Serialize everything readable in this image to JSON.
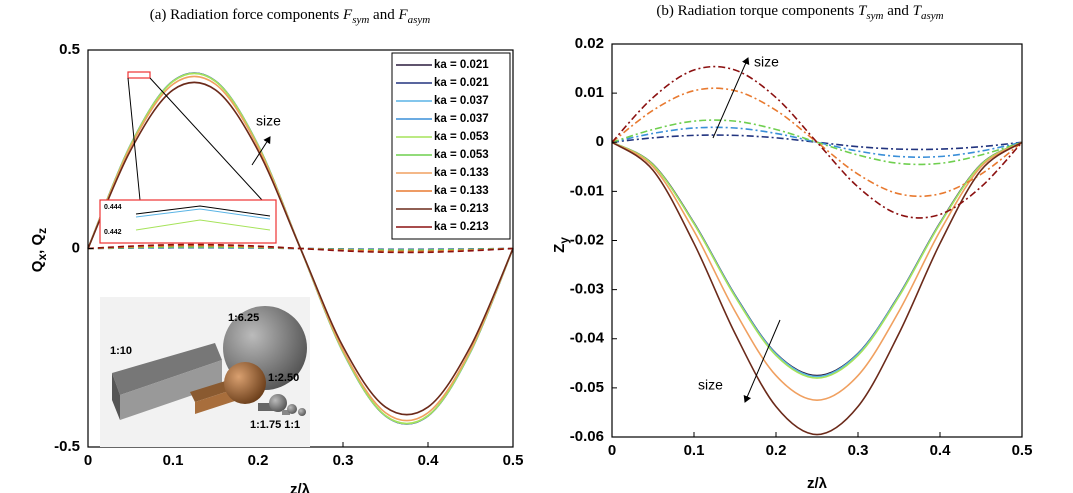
{
  "chart_data": [
    {
      "type": "line",
      "title_parts": [
        "(a) Radiation force components ",
        "F",
        "sym",
        " and ",
        "F",
        "asym"
      ],
      "xlabel": "z/λ",
      "ylabel_parts": [
        "Q",
        "x",
        ", Q",
        "z"
      ],
      "x": [
        0,
        0.05,
        0.1,
        0.15,
        0.2,
        0.25,
        0.3,
        0.35,
        0.4,
        0.45,
        0.5
      ],
      "xlim": [
        0,
        0.5
      ],
      "xticks": [
        0,
        0.1,
        0.2,
        0.3,
        0.4,
        0.5
      ],
      "ylim": [
        -0.5,
        0.5
      ],
      "yticks": [
        -0.5,
        0,
        0.5
      ],
      "legend": "upper right",
      "series": [
        {
          "name": "ka = 0.021",
          "color": "#2a1b3d",
          "line_style": "solid",
          "values": [
            0,
            0.2608,
            0.4218,
            0.4218,
            0.2608,
            0,
            -0.2608,
            -0.4218,
            -0.4218,
            -0.2608,
            0
          ]
        },
        {
          "name": "ka = 0.021",
          "color": "#22347f",
          "line_style": "dashed",
          "values": [
            0,
            0.0012,
            0.0019,
            0.0019,
            0.0012,
            0,
            -0.0012,
            -0.0019,
            -0.0019,
            -0.0012,
            0
          ]
        },
        {
          "name": "ka = 0.037",
          "color": "#5ab4e5",
          "line_style": "solid",
          "values": [
            0,
            0.2606,
            0.4215,
            0.4215,
            0.2606,
            0,
            -0.2606,
            -0.4215,
            -0.4215,
            -0.2606,
            0
          ]
        },
        {
          "name": "ka = 0.037",
          "color": "#3a8fd8",
          "line_style": "dashed",
          "values": [
            0,
            0.0018,
            0.0029,
            0.0029,
            0.0018,
            0,
            -0.0018,
            -0.0029,
            -0.0029,
            -0.0018,
            0
          ]
        },
        {
          "name": "ka = 0.053",
          "color": "#a6e35a",
          "line_style": "solid",
          "values": [
            0,
            0.2602,
            0.4208,
            0.4208,
            0.2602,
            0,
            -0.2602,
            -0.4208,
            -0.4208,
            -0.2602,
            0
          ]
        },
        {
          "name": "ka = 0.053",
          "color": "#6fcf4f",
          "line_style": "dashed",
          "values": [
            0,
            0.0024,
            0.0038,
            0.0038,
            0.0024,
            0,
            -0.0024,
            -0.0038,
            -0.0038,
            -0.0024,
            0
          ]
        },
        {
          "name": "ka = 0.133",
          "color": "#f0a060",
          "line_style": "solid",
          "values": [
            0,
            0.2558,
            0.4137,
            0.4137,
            0.2558,
            0,
            -0.2558,
            -0.4137,
            -0.4137,
            -0.2558,
            0
          ]
        },
        {
          "name": "ka = 0.133",
          "color": "#e87a30",
          "line_style": "dashed",
          "values": [
            0,
            0.0041,
            0.0067,
            0.0067,
            0.0041,
            0,
            -0.0041,
            -0.0067,
            -0.0067,
            -0.0041,
            0
          ]
        },
        {
          "name": "ka = 0.213",
          "color": "#6b2a1a",
          "line_style": "solid",
          "values": [
            0,
            0.247,
            0.3994,
            0.3994,
            0.247,
            0,
            -0.247,
            -0.3994,
            -0.3994,
            -0.247,
            0
          ]
        },
        {
          "name": "ka = 0.213",
          "color": "#8b1010",
          "line_style": "dashed",
          "values": [
            0,
            0.0059,
            0.0095,
            0.0095,
            0.0059,
            0,
            -0.0059,
            -0.0095,
            -0.0095,
            -0.0059,
            0
          ]
        }
      ],
      "annotation": "size",
      "inset_labels": [
        "0.444",
        "0.442"
      ],
      "inset_image_labels": [
        "1:10",
        "1:6.25",
        "1:2.50",
        "1:1.75 1:1"
      ]
    },
    {
      "type": "line",
      "title_parts": [
        "(b) Radiation torque components ",
        "T",
        "sym",
        " and ",
        "T",
        "asym"
      ],
      "xlabel": "z/λ",
      "ylabel_parts": [
        "Z",
        "y"
      ],
      "x": [
        0,
        0.05,
        0.1,
        0.15,
        0.2,
        0.25,
        0.3,
        0.35,
        0.4,
        0.45,
        0.5
      ],
      "xlim": [
        0,
        0.5
      ],
      "xticks": [
        0,
        0.1,
        0.2,
        0.3,
        0.4,
        0.5
      ],
      "ylim": [
        -0.06,
        0.02
      ],
      "yticks": [
        -0.06,
        -0.05,
        -0.04,
        -0.03,
        -0.02,
        -0.01,
        0,
        0.01,
        0.02
      ],
      "series": [
        {
          "color": "#2a1b3d",
          "line_style": "solid",
          "values": [
            0,
            -0.0045,
            -0.0164,
            -0.0311,
            -0.043,
            -0.0475,
            -0.043,
            -0.0311,
            -0.0164,
            -0.0045,
            0
          ]
        },
        {
          "color": "#22347f",
          "line_style": "dashdot",
          "values": [
            0,
            0.0009,
            0.0014,
            0.0014,
            0.0009,
            0,
            -0.0009,
            -0.0014,
            -0.0014,
            -0.0009,
            0
          ]
        },
        {
          "color": "#5ab4e5",
          "line_style": "solid",
          "values": [
            0,
            -0.0046,
            -0.0165,
            -0.0312,
            -0.0431,
            -0.0477,
            -0.0431,
            -0.0312,
            -0.0165,
            -0.0046,
            0
          ]
        },
        {
          "color": "#3a8fd8",
          "line_style": "dashdot",
          "values": [
            0,
            0.0018,
            0.0029,
            0.0029,
            0.0018,
            0,
            -0.0018,
            -0.0029,
            -0.0029,
            -0.0018,
            0
          ]
        },
        {
          "color": "#a6e35a",
          "line_style": "solid",
          "values": [
            0,
            -0.0046,
            -0.0166,
            -0.0314,
            -0.0434,
            -0.048,
            -0.0434,
            -0.0314,
            -0.0166,
            -0.0046,
            0
          ]
        },
        {
          "color": "#6fcf4f",
          "line_style": "dashdot",
          "values": [
            0,
            0.0026,
            0.0043,
            0.0043,
            0.0026,
            0,
            -0.0026,
            -0.0043,
            -0.0043,
            -0.0026,
            0
          ]
        },
        {
          "color": "#f0a060",
          "line_style": "solid",
          "values": [
            0,
            -0.005,
            -0.0181,
            -0.0344,
            -0.0475,
            -0.0525,
            -0.0475,
            -0.0344,
            -0.0181,
            -0.005,
            0
          ]
        },
        {
          "color": "#e87a30",
          "line_style": "dashdot",
          "values": [
            0,
            0.0065,
            0.0105,
            0.0105,
            0.0065,
            0,
            -0.0065,
            -0.0105,
            -0.0105,
            -0.0065,
            0
          ]
        },
        {
          "color": "#6b2a1a",
          "line_style": "solid",
          "values": [
            0,
            -0.0057,
            -0.0206,
            -0.0389,
            -0.0538,
            -0.0595,
            -0.0538,
            -0.0389,
            -0.0206,
            -0.0057,
            0
          ]
        },
        {
          "color": "#8b1010",
          "line_style": "dashdot",
          "values": [
            0,
            0.0091,
            0.0147,
            0.0147,
            0.0091,
            0,
            -0.0091,
            -0.0147,
            -0.0147,
            -0.0091,
            0
          ]
        }
      ],
      "annotations": [
        "size",
        "size"
      ]
    }
  ]
}
